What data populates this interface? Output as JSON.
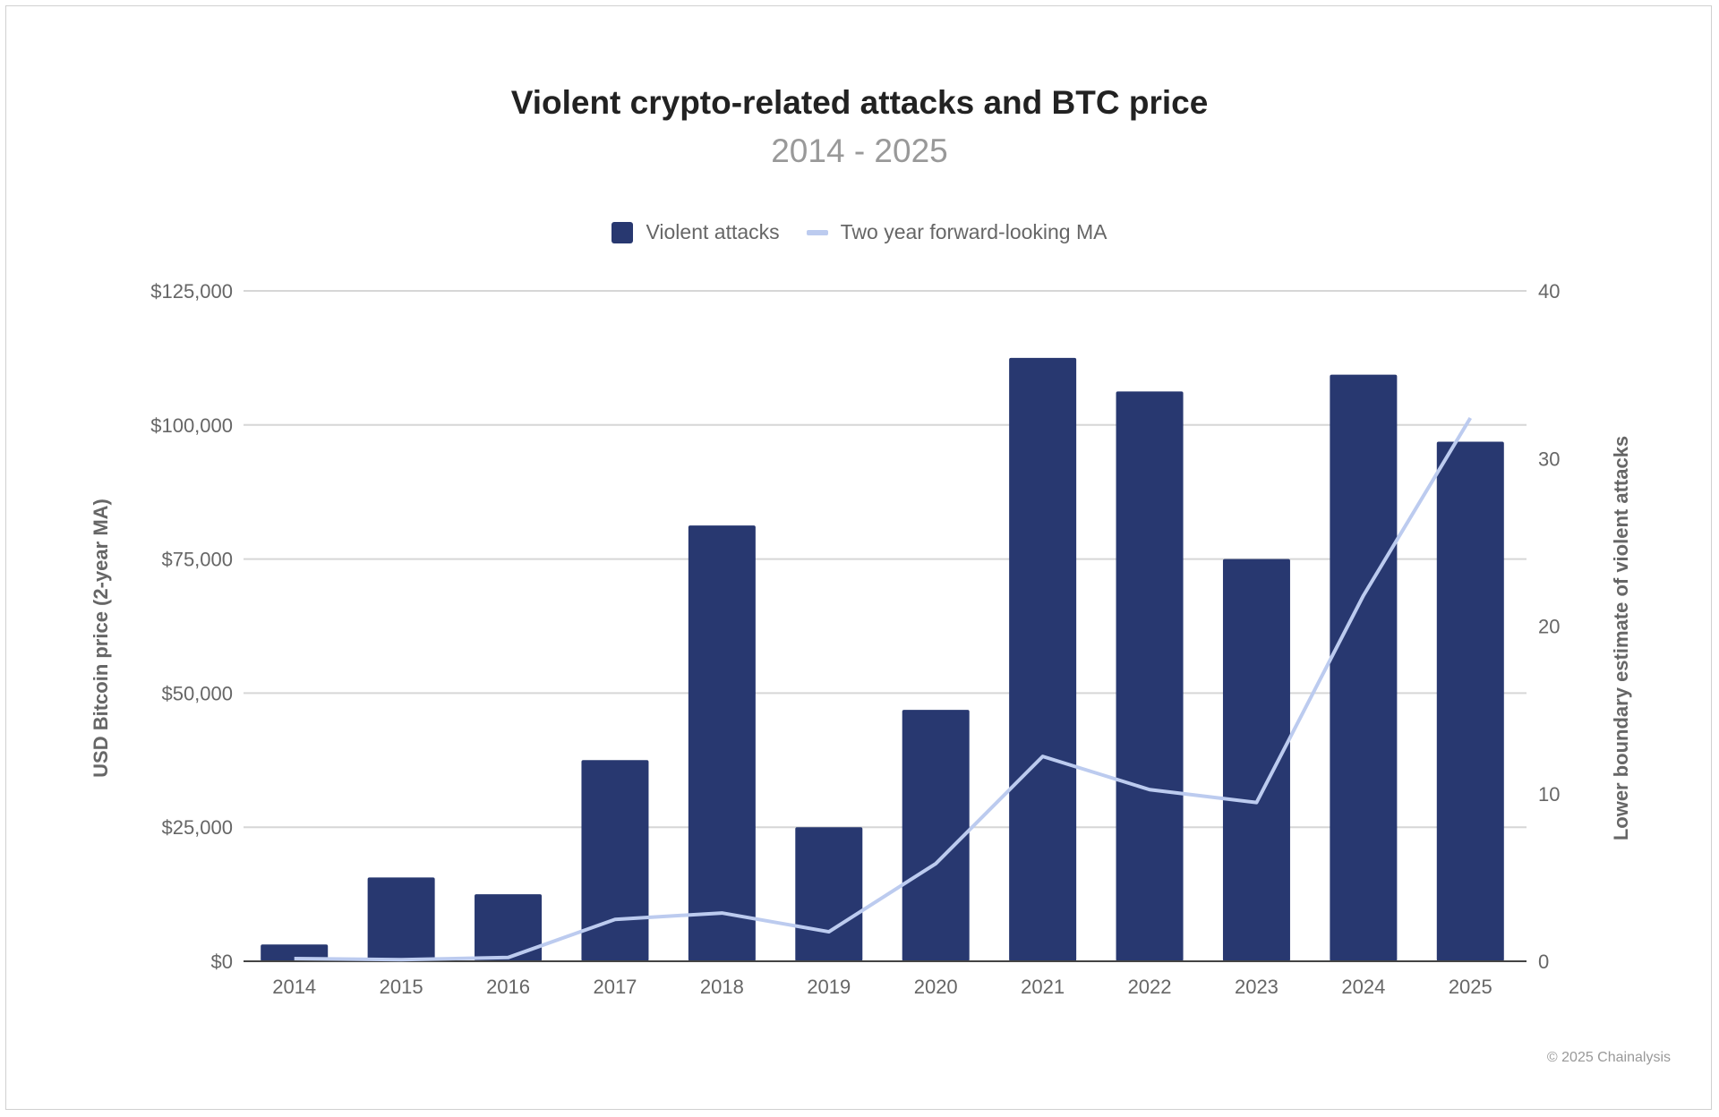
{
  "chart_data": {
    "type": "bar+line",
    "title": "Violent crypto-related attacks and BTC price",
    "subtitle": "2014 - 2025",
    "categories": [
      "2014",
      "2015",
      "2016",
      "2017",
      "2018",
      "2019",
      "2020",
      "2021",
      "2022",
      "2023",
      "2024",
      "2025"
    ],
    "series": [
      {
        "name": "Violent attacks",
        "type": "bar",
        "axis": "right",
        "color": "#283870",
        "values": [
          1,
          5,
          4,
          12,
          26,
          8,
          15,
          36,
          34,
          24,
          35,
          31
        ]
      },
      {
        "name": "Two year forward-looking MA",
        "type": "line",
        "axis": "left",
        "color": "#bccbef",
        "values": [
          500,
          300,
          700,
          7800,
          9000,
          5500,
          18200,
          38200,
          32000,
          29600,
          68200,
          101300
        ]
      }
    ],
    "left_axis": {
      "label": "USD Bitcoin price (2-year MA)",
      "ylim": [
        0,
        125000
      ],
      "ticks": [
        "$0",
        "$25,000",
        "$50,000",
        "$75,000",
        "$100,000",
        "$125,000"
      ]
    },
    "right_axis": {
      "label": "Lower boundary estimate of violent attacks",
      "ylim": [
        0,
        40
      ],
      "ticks": [
        "0",
        "10",
        "20",
        "30",
        "40"
      ]
    },
    "grid": true,
    "legend_position": "top"
  },
  "footer": {
    "copyright": "© 2025 Chainalysis"
  }
}
